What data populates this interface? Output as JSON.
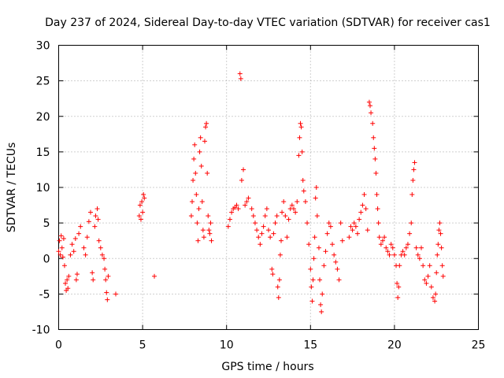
{
  "chart_data": {
    "type": "scatter",
    "title": "Day 237 of 2024, Sidereal Day-to-day VTEC variation (SDTVAR) for receiver cas1",
    "xlabel": "GPS time / hours",
    "ylabel": "SDTVAR / TECUs",
    "xlim": [
      0,
      25
    ],
    "ylim": [
      -10,
      30
    ],
    "xticks": [
      "0",
      "5",
      "10",
      "15",
      "20",
      "25"
    ],
    "yticks": [
      "-10",
      "-5",
      "0",
      "5",
      "10",
      "15",
      "20",
      "25",
      "30"
    ],
    "grid": true,
    "marker": "+",
    "color": "#ff0000",
    "series": [
      {
        "name": "SDTVAR",
        "points": [
          [
            0.0,
            1.0
          ],
          [
            0.05,
            2.5
          ],
          [
            0.1,
            0.5
          ],
          [
            0.15,
            3.2
          ],
          [
            0.2,
            1.5
          ],
          [
            0.25,
            0.2
          ],
          [
            0.3,
            2.8
          ],
          [
            0.35,
            -1.0
          ],
          [
            0.4,
            -3.5
          ],
          [
            0.45,
            -4.5
          ],
          [
            0.5,
            -3.0
          ],
          [
            0.55,
            -4.2
          ],
          [
            0.6,
            -2.5
          ],
          [
            0.7,
            0.5
          ],
          [
            0.8,
            2.0
          ],
          [
            0.9,
            1.0
          ],
          [
            1.0,
            2.8
          ],
          [
            1.05,
            -3.0
          ],
          [
            1.1,
            -2.2
          ],
          [
            1.2,
            3.5
          ],
          [
            1.3,
            4.5
          ],
          [
            1.5,
            1.5
          ],
          [
            1.6,
            0.5
          ],
          [
            1.7,
            3.0
          ],
          [
            1.8,
            5.2
          ],
          [
            1.9,
            6.5
          ],
          [
            2.0,
            -2.0
          ],
          [
            2.05,
            -3.0
          ],
          [
            2.15,
            4.5
          ],
          [
            2.2,
            6.0
          ],
          [
            2.3,
            7.0
          ],
          [
            2.35,
            5.5
          ],
          [
            2.4,
            2.5
          ],
          [
            2.5,
            1.5
          ],
          [
            2.6,
            0.5
          ],
          [
            2.7,
            0.0
          ],
          [
            2.75,
            -1.5
          ],
          [
            2.8,
            -3.0
          ],
          [
            2.85,
            -4.8
          ],
          [
            2.9,
            -5.8
          ],
          [
            2.95,
            -2.5
          ],
          [
            3.4,
            -5.0
          ],
          [
            4.8,
            6.0
          ],
          [
            4.85,
            7.5
          ],
          [
            4.9,
            5.5
          ],
          [
            4.95,
            8.0
          ],
          [
            5.0,
            6.5
          ],
          [
            5.05,
            9.0
          ],
          [
            5.1,
            8.5
          ],
          [
            5.7,
            -2.5
          ],
          [
            7.9,
            6.0
          ],
          [
            7.95,
            8.0
          ],
          [
            8.0,
            11.0
          ],
          [
            8.05,
            14.0
          ],
          [
            8.1,
            16.0
          ],
          [
            8.15,
            12.0
          ],
          [
            8.2,
            9.0
          ],
          [
            8.25,
            5.0
          ],
          [
            8.3,
            2.5
          ],
          [
            8.35,
            7.0
          ],
          [
            8.4,
            15.0
          ],
          [
            8.45,
            17.0
          ],
          [
            8.5,
            13.0
          ],
          [
            8.55,
            8.0
          ],
          [
            8.6,
            4.0
          ],
          [
            8.65,
            3.0
          ],
          [
            8.7,
            16.5
          ],
          [
            8.75,
            18.5
          ],
          [
            8.8,
            19.0
          ],
          [
            8.85,
            12.0
          ],
          [
            8.9,
            6.0
          ],
          [
            8.95,
            4.0
          ],
          [
            9.0,
            3.5
          ],
          [
            9.05,
            5.0
          ],
          [
            9.1,
            2.5
          ],
          [
            10.1,
            4.5
          ],
          [
            10.2,
            5.5
          ],
          [
            10.3,
            6.5
          ],
          [
            10.4,
            7.0
          ],
          [
            10.5,
            7.2
          ],
          [
            10.6,
            7.5
          ],
          [
            10.7,
            7.0
          ],
          [
            10.8,
            26.0
          ],
          [
            10.85,
            25.3
          ],
          [
            10.9,
            11.0
          ],
          [
            11.0,
            12.5
          ],
          [
            11.1,
            7.5
          ],
          [
            11.2,
            8.0
          ],
          [
            11.3,
            8.5
          ],
          [
            11.5,
            7.0
          ],
          [
            11.6,
            6.0
          ],
          [
            11.7,
            5.0
          ],
          [
            11.8,
            4.0
          ],
          [
            11.9,
            3.0
          ],
          [
            12.0,
            2.0
          ],
          [
            12.1,
            3.5
          ],
          [
            12.2,
            4.5
          ],
          [
            12.3,
            6.0
          ],
          [
            12.4,
            7.0
          ],
          [
            12.5,
            4.0
          ],
          [
            12.6,
            3.0
          ],
          [
            12.7,
            -1.5
          ],
          [
            12.75,
            -2.2
          ],
          [
            12.8,
            3.5
          ],
          [
            12.9,
            5.0
          ],
          [
            13.0,
            6.0
          ],
          [
            13.05,
            -4.0
          ],
          [
            13.1,
            -5.5
          ],
          [
            13.15,
            -3.0
          ],
          [
            13.2,
            0.5
          ],
          [
            13.25,
            2.5
          ],
          [
            13.3,
            6.5
          ],
          [
            13.4,
            8.0
          ],
          [
            13.5,
            6.0
          ],
          [
            13.6,
            3.0
          ],
          [
            13.7,
            5.5
          ],
          [
            13.8,
            7.0
          ],
          [
            13.9,
            7.5
          ],
          [
            14.0,
            7.0
          ],
          [
            14.1,
            6.5
          ],
          [
            14.2,
            8.0
          ],
          [
            14.3,
            14.5
          ],
          [
            14.35,
            17.0
          ],
          [
            14.4,
            19.0
          ],
          [
            14.45,
            18.5
          ],
          [
            14.5,
            15.0
          ],
          [
            14.55,
            11.0
          ],
          [
            14.6,
            9.5
          ],
          [
            14.7,
            8.0
          ],
          [
            14.8,
            5.0
          ],
          [
            14.9,
            2.0
          ],
          [
            15.0,
            -1.5
          ],
          [
            15.05,
            -4.0
          ],
          [
            15.1,
            -6.0
          ],
          [
            15.15,
            -3.0
          ],
          [
            15.2,
            0.0
          ],
          [
            15.25,
            3.0
          ],
          [
            15.3,
            8.5
          ],
          [
            15.35,
            10.0
          ],
          [
            15.4,
            6.0
          ],
          [
            15.5,
            1.5
          ],
          [
            15.55,
            -3.0
          ],
          [
            15.6,
            -6.5
          ],
          [
            15.65,
            -7.5
          ],
          [
            15.7,
            -5.0
          ],
          [
            15.8,
            -1.0
          ],
          [
            15.9,
            1.0
          ],
          [
            16.0,
            3.5
          ],
          [
            16.1,
            5.0
          ],
          [
            16.2,
            4.5
          ],
          [
            16.3,
            2.0
          ],
          [
            16.4,
            0.5
          ],
          [
            16.5,
            -0.5
          ],
          [
            16.6,
            -1.5
          ],
          [
            16.7,
            -3.0
          ],
          [
            16.8,
            5.0
          ],
          [
            16.9,
            2.5
          ],
          [
            17.3,
            3.0
          ],
          [
            17.4,
            4.5
          ],
          [
            17.5,
            4.0
          ],
          [
            17.6,
            5.0
          ],
          [
            17.7,
            4.5
          ],
          [
            17.8,
            3.5
          ],
          [
            17.9,
            5.5
          ],
          [
            18.0,
            6.5
          ],
          [
            18.1,
            7.5
          ],
          [
            18.2,
            9.0
          ],
          [
            18.3,
            7.0
          ],
          [
            18.4,
            4.0
          ],
          [
            18.5,
            22.0
          ],
          [
            18.55,
            21.5
          ],
          [
            18.6,
            20.5
          ],
          [
            18.7,
            19.0
          ],
          [
            18.75,
            17.0
          ],
          [
            18.8,
            15.5
          ],
          [
            18.85,
            14.0
          ],
          [
            18.9,
            12.0
          ],
          [
            18.95,
            9.0
          ],
          [
            19.0,
            7.0
          ],
          [
            19.05,
            5.0
          ],
          [
            19.1,
            3.0
          ],
          [
            19.2,
            2.0
          ],
          [
            19.3,
            2.5
          ],
          [
            19.4,
            3.0
          ],
          [
            19.5,
            1.5
          ],
          [
            19.6,
            1.0
          ],
          [
            19.7,
            0.5
          ],
          [
            19.8,
            2.0
          ],
          [
            19.9,
            1.5
          ],
          [
            20.0,
            0.5
          ],
          [
            20.1,
            -1.0
          ],
          [
            20.15,
            -3.5
          ],
          [
            20.2,
            -5.5
          ],
          [
            20.25,
            -4.0
          ],
          [
            20.3,
            -1.0
          ],
          [
            20.4,
            0.5
          ],
          [
            20.5,
            1.0
          ],
          [
            20.6,
            0.5
          ],
          [
            20.7,
            1.5
          ],
          [
            20.8,
            2.0
          ],
          [
            20.9,
            3.5
          ],
          [
            21.0,
            5.0
          ],
          [
            21.05,
            9.0
          ],
          [
            21.1,
            11.0
          ],
          [
            21.15,
            12.5
          ],
          [
            21.2,
            13.5
          ],
          [
            21.3,
            1.5
          ],
          [
            21.4,
            0.5
          ],
          [
            21.5,
            0.0
          ],
          [
            21.6,
            1.5
          ],
          [
            21.7,
            -1.0
          ],
          [
            21.8,
            -3.0
          ],
          [
            21.9,
            -3.5
          ],
          [
            22.0,
            -2.5
          ],
          [
            22.1,
            -1.0
          ],
          [
            22.2,
            -4.0
          ],
          [
            22.3,
            -5.5
          ],
          [
            22.4,
            -6.0
          ],
          [
            22.45,
            -5.0
          ],
          [
            22.5,
            -2.0
          ],
          [
            22.55,
            0.5
          ],
          [
            22.6,
            2.0
          ],
          [
            22.65,
            4.0
          ],
          [
            22.7,
            5.0
          ],
          [
            22.75,
            3.5
          ],
          [
            22.8,
            1.5
          ],
          [
            22.85,
            -1.0
          ],
          [
            22.9,
            -2.5
          ]
        ]
      }
    ]
  }
}
